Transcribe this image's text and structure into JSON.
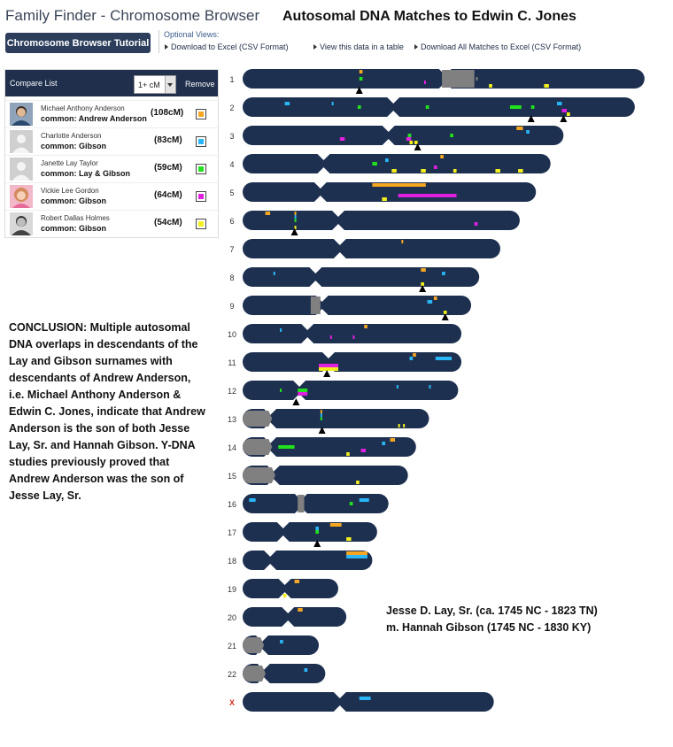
{
  "header": {
    "app_title": "Family Finder - Chromosome Browser",
    "main_title": "Autosomal DNA Matches to Edwin C. Jones",
    "tutorial_button": "Chromosome Browser Tutorial",
    "optional_views_label": "Optional Views:",
    "links": [
      "Download to Excel (CSV Format)",
      "View this data in a table",
      "Download All Matches to Excel (CSV Format)"
    ]
  },
  "compare_list": {
    "title": "Compare List",
    "threshold_value": "1+ cM",
    "remove_label": "Remove",
    "matches": [
      {
        "name": "Michael Anthony Anderson",
        "common": "common: Andrew Anderson",
        "cm": "(108cM)",
        "color": "#f5a623"
      },
      {
        "name": "Charlotte Anderson",
        "common": "common: Gibson",
        "cm": "(83cM)",
        "color": "#29b6f6"
      },
      {
        "name": "Janette Lay Taylor",
        "common": "common: Lay & Gibson",
        "cm": "(59cM)",
        "color": "#22e01e"
      },
      {
        "name": "Vickie Lee Gordon",
        "common": "common: Gibson",
        "cm": "(64cM)",
        "color": "#e020e0"
      },
      {
        "name": "Robert Dallas Holmes",
        "common": "common: Gibson",
        "cm": "(54cM)",
        "color": "#f2ef1c"
      }
    ]
  },
  "conclusion": "CONCLUSION: Multiple autosomal DNA overlaps in descendants of the Lay and Gibson surnames with descendants of Andrew Anderson, i.e. Michael Anthony Anderson & Edwin C. Jones, indicate that Andrew Anderson is the son of both Jesse Lay, Sr. and Hannah Gibson. Y-DNA studies previously proved that Andrew Anderson was the son of Jesse Lay, Sr.",
  "ancestor": {
    "line1": "Jesse D. Lay, Sr. (ca. 1745 NC - 1823 TN)",
    "line2": "m. Hannah Gibson (1745 NC - 1830 KY)"
  },
  "colors": {
    "chromosome": "#1e3050",
    "centromere_gray": "#808080",
    "x_label": "#d62d20"
  },
  "chart_data": {
    "type": "chromosome-browser",
    "chromosomes": [
      {
        "label": "1",
        "length": 248,
        "centromere": 125,
        "gray": [
          123,
          143
        ],
        "marks": [
          {
            "s": 72,
            "e": 74,
            "c": 0
          },
          {
            "s": 72,
            "e": 74,
            "c": 2
          },
          {
            "s": 112,
            "e": 113,
            "c": 3
          },
          {
            "s": 152,
            "e": 154,
            "c": 4
          },
          {
            "s": 186,
            "e": 189,
            "c": 4
          },
          {
            "s": 144,
            "e": 145,
            "c": -1
          }
        ],
        "arrows": [
          72
        ]
      },
      {
        "label": "2",
        "length": 242,
        "centromere": 93,
        "gray": [],
        "marks": [
          {
            "s": 26,
            "e": 29,
            "c": 1
          },
          {
            "s": 55,
            "e": 56,
            "c": 1
          },
          {
            "s": 71,
            "e": 73,
            "c": 2
          },
          {
            "s": 113,
            "e": 115,
            "c": 2
          },
          {
            "s": 165,
            "e": 172,
            "c": 2
          },
          {
            "s": 178,
            "e": 180,
            "c": 2
          },
          {
            "s": 194,
            "e": 197,
            "c": 1
          },
          {
            "s": 197,
            "e": 200,
            "c": 3
          },
          {
            "s": 200,
            "e": 202,
            "c": 4
          }
        ],
        "arrows": [
          178,
          198
        ]
      },
      {
        "label": "3",
        "length": 198,
        "centromere": 90,
        "gray": [],
        "marks": [
          {
            "s": 60,
            "e": 63,
            "c": 3
          },
          {
            "s": 102,
            "e": 104,
            "c": 2
          },
          {
            "s": 101,
            "e": 104,
            "c": 3
          },
          {
            "s": 103,
            "e": 105,
            "c": 4
          },
          {
            "s": 106,
            "e": 108,
            "c": 4
          },
          {
            "s": 128,
            "e": 130,
            "c": 2
          },
          {
            "s": 169,
            "e": 173,
            "c": 0
          },
          {
            "s": 175,
            "e": 177,
            "c": 1
          }
        ],
        "arrows": [
          108
        ]
      },
      {
        "label": "4",
        "length": 190,
        "centromere": 50,
        "gray": [],
        "marks": [
          {
            "s": 80,
            "e": 83,
            "c": 2
          },
          {
            "s": 88,
            "e": 90,
            "c": 1
          },
          {
            "s": 92,
            "e": 95,
            "c": 4
          },
          {
            "s": 110,
            "e": 113,
            "c": 4
          },
          {
            "s": 118,
            "e": 120,
            "c": 3
          },
          {
            "s": 122,
            "e": 124,
            "c": 0
          },
          {
            "s": 130,
            "e": 132,
            "c": 4
          },
          {
            "s": 156,
            "e": 159,
            "c": 4
          },
          {
            "s": 170,
            "e": 173,
            "c": 4
          }
        ]
      },
      {
        "label": "5",
        "length": 181,
        "centromere": 48,
        "gray": [],
        "marks": [
          {
            "s": 80,
            "e": 113,
            "c": 0
          },
          {
            "s": 96,
            "e": 132,
            "c": 3
          },
          {
            "s": 86,
            "e": 89,
            "c": 4
          }
        ]
      },
      {
        "label": "6",
        "length": 171,
        "centromere": 59,
        "gray": [],
        "marks": [
          {
            "s": 14,
            "e": 17,
            "c": 0
          },
          {
            "s": 32,
            "e": 33,
            "c": 0
          },
          {
            "s": 32,
            "e": 33,
            "c": 1
          },
          {
            "s": 32,
            "e": 33,
            "c": 2
          },
          {
            "s": 32,
            "e": 33,
            "c": 4
          },
          {
            "s": 143,
            "e": 145,
            "c": 3
          }
        ],
        "arrows": [
          32
        ]
      },
      {
        "label": "7",
        "length": 159,
        "centromere": 60,
        "gray": [],
        "marks": [
          {
            "s": 98,
            "e": 99,
            "c": 0
          }
        ]
      },
      {
        "label": "8",
        "length": 146,
        "centromere": 45,
        "gray": [],
        "marks": [
          {
            "s": 19,
            "e": 20,
            "c": 1
          },
          {
            "s": 110,
            "e": 113,
            "c": 0
          },
          {
            "s": 110,
            "e": 112,
            "c": 4
          },
          {
            "s": 123,
            "e": 125,
            "c": 1
          }
        ],
        "arrows": [
          111
        ]
      },
      {
        "label": "9",
        "length": 141,
        "centromere": 49,
        "gray": [
          42,
          48
        ],
        "marks": [
          {
            "s": 114,
            "e": 117,
            "c": 1
          },
          {
            "s": 118,
            "e": 120,
            "c": 0
          },
          {
            "s": 124,
            "e": 126,
            "c": 4
          }
        ],
        "arrows": [
          125
        ]
      },
      {
        "label": "10",
        "length": 135,
        "centromere": 40,
        "gray": [],
        "marks": [
          {
            "s": 23,
            "e": 24,
            "c": 1
          },
          {
            "s": 54,
            "e": 55,
            "c": 3
          },
          {
            "s": 68,
            "e": 69,
            "c": 3
          },
          {
            "s": 75,
            "e": 77,
            "c": 0
          }
        ]
      },
      {
        "label": "11",
        "length": 135,
        "centromere": 53,
        "gray": [],
        "marks": [
          {
            "s": 47,
            "e": 59,
            "c": 3
          },
          {
            "s": 47,
            "e": 59,
            "c": 4
          },
          {
            "s": 103,
            "e": 105,
            "c": 1
          },
          {
            "s": 105,
            "e": 107,
            "c": 0
          },
          {
            "s": 119,
            "e": 129,
            "c": 1
          }
        ],
        "arrows": [
          52
        ]
      },
      {
        "label": "12",
        "length": 133,
        "centromere": 35,
        "gray": [],
        "marks": [
          {
            "s": 23,
            "e": 24,
            "c": 2
          },
          {
            "s": 34,
            "e": 40,
            "c": 2
          },
          {
            "s": 34,
            "e": 40,
            "c": 3
          },
          {
            "s": 95,
            "e": 96,
            "c": 1
          },
          {
            "s": 115,
            "e": 116,
            "c": 1
          }
        ],
        "arrows": [
          33
        ]
      },
      {
        "label": "13",
        "length": 115,
        "centromere": 17,
        "gray": [
          0,
          16
        ],
        "marks": [
          {
            "s": 48,
            "e": 49,
            "c": 0
          },
          {
            "s": 48,
            "e": 49,
            "c": 1
          },
          {
            "s": 48,
            "e": 49,
            "c": 2
          },
          {
            "s": 96,
            "e": 97,
            "c": 4
          },
          {
            "s": 99,
            "e": 100,
            "c": 4
          }
        ],
        "arrows": [
          49
        ]
      },
      {
        "label": "14",
        "length": 107,
        "centromere": 17,
        "gray": [
          0,
          16
        ],
        "marks": [
          {
            "s": 22,
            "e": 32,
            "c": 2
          },
          {
            "s": 73,
            "e": 76,
            "c": 3
          },
          {
            "s": 86,
            "e": 88,
            "c": 1
          },
          {
            "s": 91,
            "e": 94,
            "c": 0
          },
          {
            "s": 64,
            "e": 66,
            "c": 4
          }
        ]
      },
      {
        "label": "15",
        "length": 102,
        "centromere": 19,
        "gray": [
          0,
          18
        ],
        "marks": [
          {
            "s": 70,
            "e": 72,
            "c": 4
          }
        ]
      },
      {
        "label": "16",
        "length": 90,
        "centromere": 36,
        "gray": [
          34,
          38
        ],
        "marks": [
          {
            "s": 4,
            "e": 8,
            "c": 1
          },
          {
            "s": 66,
            "e": 68,
            "c": 2
          },
          {
            "s": 72,
            "e": 78,
            "c": 1
          }
        ]
      },
      {
        "label": "17",
        "length": 83,
        "centromere": 25,
        "gray": [],
        "marks": [
          {
            "s": 45,
            "e": 47,
            "c": 1
          },
          {
            "s": 45,
            "e": 47,
            "c": 2
          },
          {
            "s": 54,
            "e": 61,
            "c": 0
          },
          {
            "s": 64,
            "e": 67,
            "c": 4
          }
        ],
        "arrows": [
          46
        ]
      },
      {
        "label": "18",
        "length": 80,
        "centromere": 17,
        "gray": [],
        "marks": [
          {
            "s": 64,
            "e": 77,
            "c": 0
          },
          {
            "s": 64,
            "e": 77,
            "c": 1
          }
        ]
      },
      {
        "label": "19",
        "length": 59,
        "centromere": 26,
        "gray": [],
        "marks": [
          {
            "s": 25,
            "e": 27,
            "c": 4
          },
          {
            "s": 32,
            "e": 35,
            "c": 0
          }
        ]
      },
      {
        "label": "20",
        "length": 64,
        "centromere": 28,
        "gray": [],
        "marks": [
          {
            "s": 34,
            "e": 37,
            "c": 0
          }
        ]
      },
      {
        "label": "21",
        "length": 47,
        "centromere": 12,
        "gray": [
          0,
          11
        ],
        "marks": [
          {
            "s": 23,
            "e": 25,
            "c": 1
          }
        ]
      },
      {
        "label": "22",
        "length": 51,
        "centromere": 13,
        "gray": [
          0,
          12
        ],
        "marks": [
          {
            "s": 38,
            "e": 40,
            "c": 1
          }
        ]
      },
      {
        "label": "X",
        "length": 155,
        "centromere": 60,
        "gray": [],
        "marks": [
          {
            "s": 72,
            "e": 79,
            "c": 1
          }
        ]
      }
    ]
  }
}
